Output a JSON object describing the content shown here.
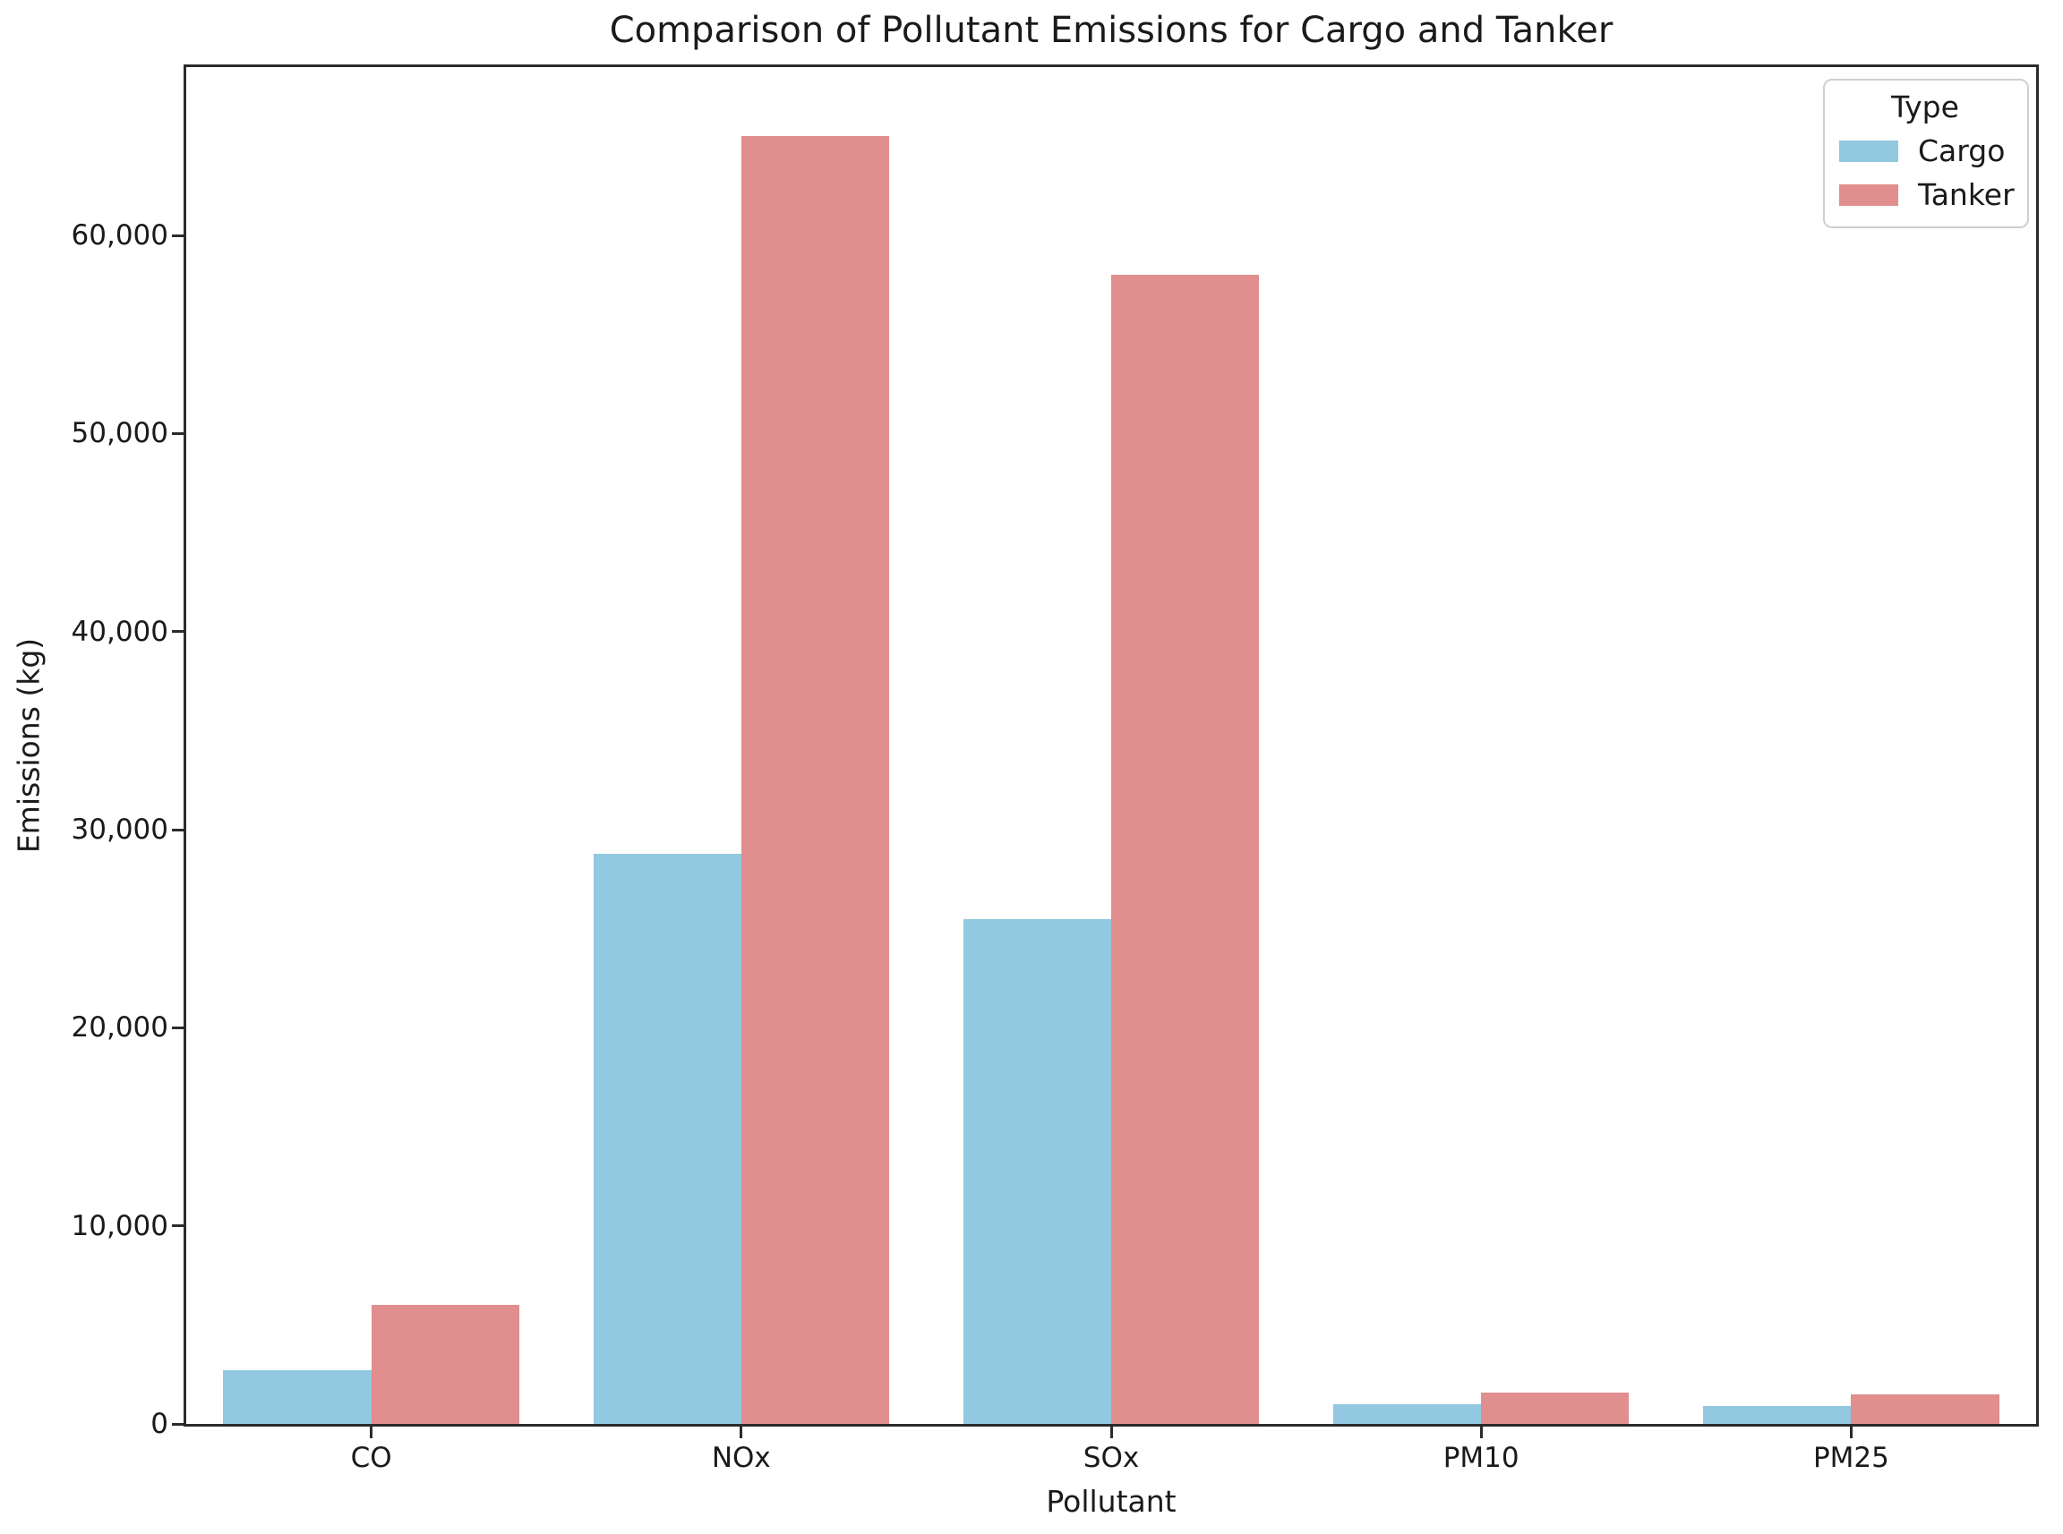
{
  "figure": {
    "background": "#ffffff",
    "frame_color": "#2b2b2b",
    "text_color": "#1a1a1a"
  },
  "legend": {
    "title": "Type",
    "position": "upper right"
  },
  "chart_data": {
    "type": "bar",
    "title": "Comparison of Pollutant Emissions for Cargo and Tanker",
    "xlabel": "Pollutant",
    "ylabel": "Emissions (kg)",
    "categories": [
      "CO",
      "NOx",
      "SOx",
      "PM10",
      "PM25"
    ],
    "series": [
      {
        "name": "Cargo",
        "color": "#92C8E0",
        "values": [
          2700,
          28800,
          25500,
          1000,
          900
        ]
      },
      {
        "name": "Tanker",
        "color": "#E08E8E",
        "values": [
          6000,
          65000,
          58000,
          1600,
          1500
        ]
      }
    ],
    "ylim": [
      0,
      68500
    ],
    "yticks": [
      0,
      10000,
      20000,
      30000,
      40000,
      50000,
      60000
    ],
    "ytick_labels": [
      "0",
      "10,000",
      "20,000",
      "30,000",
      "40,000",
      "50,000",
      "60,000"
    ],
    "grid": false,
    "bar_group_width_fraction": 0.8,
    "legend_position": "upper right"
  }
}
